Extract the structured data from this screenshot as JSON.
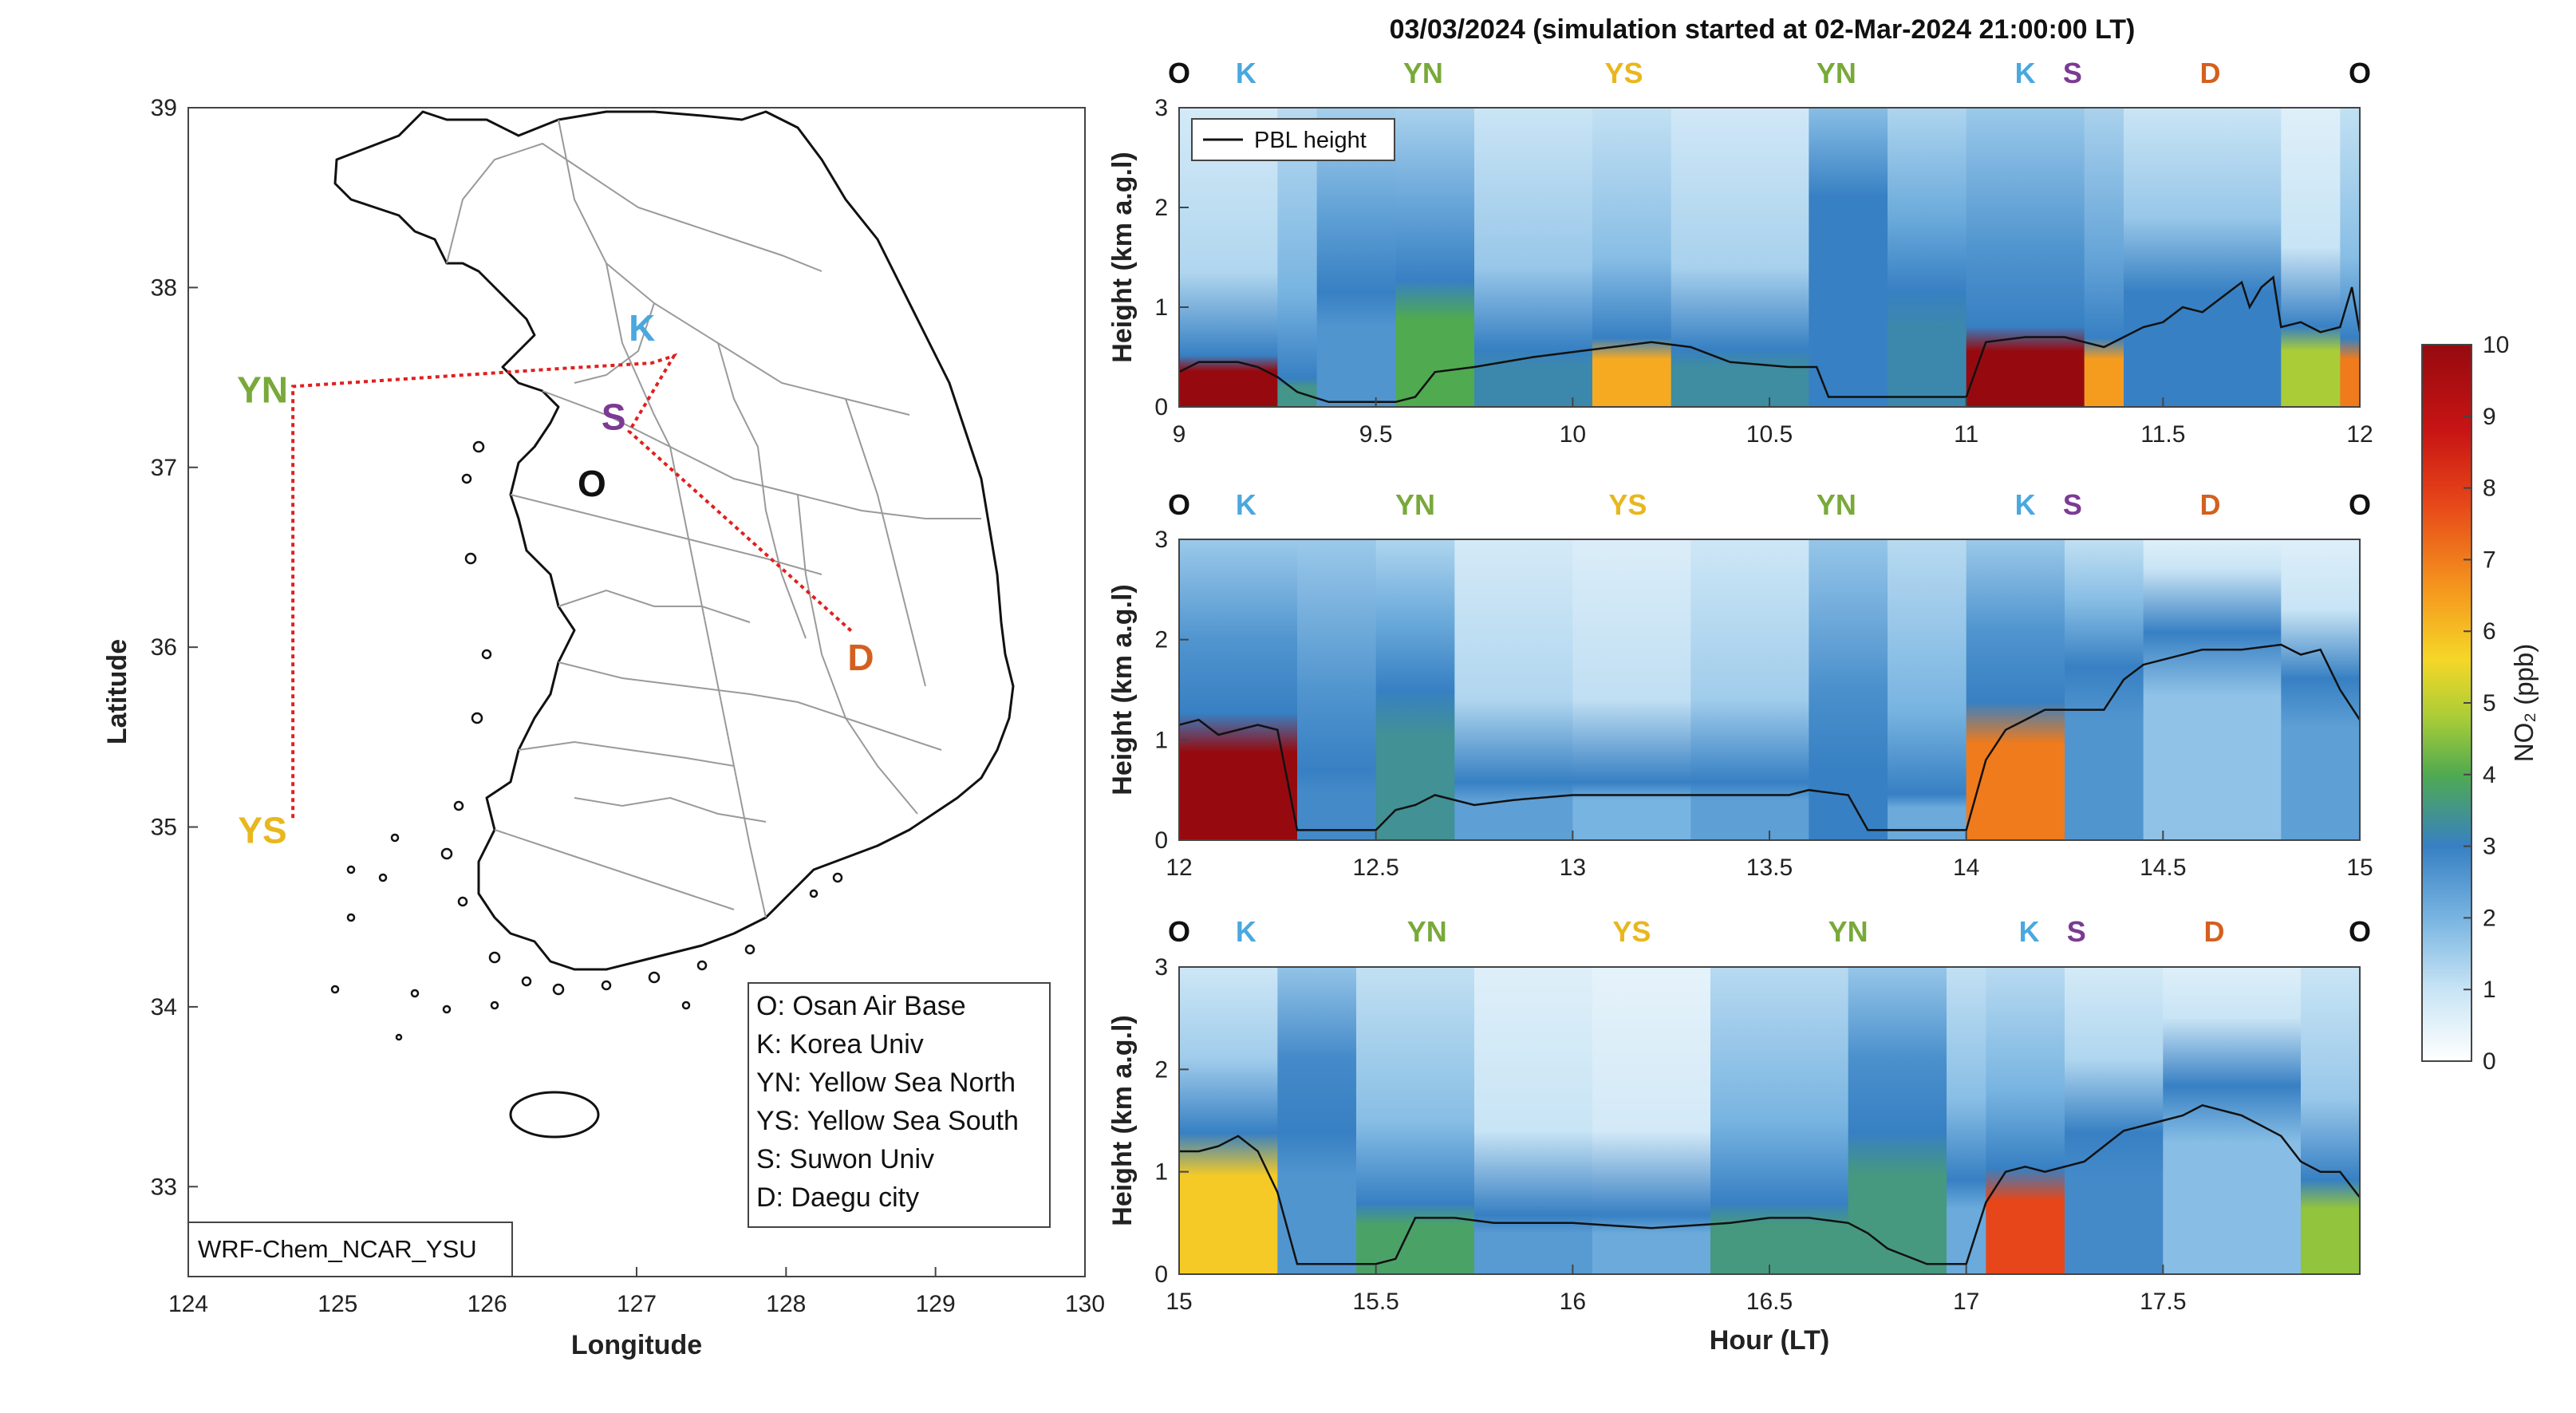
{
  "figure": {
    "title": "03/03/2024 (simulation started at 02-Mar-2024 21:00:00 LT)"
  },
  "colors": {
    "O": "#111111",
    "K": "#4aa8df",
    "YN": "#78a93a",
    "YS": "#e8b71e",
    "S": "#7b3a93",
    "D": "#d4601f",
    "flight_path": "#e0201e",
    "pbl_line": "#111111"
  },
  "map": {
    "xlabel": "Longitude",
    "ylabel": "Latitude",
    "xticks": [
      "124",
      "125",
      "126",
      "127",
      "128",
      "129",
      "130"
    ],
    "yticks": [
      "33",
      "34",
      "35",
      "36",
      "37",
      "38",
      "39"
    ],
    "model_label": "WRF-Chem_NCAR_YSU",
    "sites": [
      {
        "code": "YN",
        "lon": 124.55,
        "lat": 37.45
      },
      {
        "code": "YS",
        "lon": 124.55,
        "lat": 35.0
      },
      {
        "code": "K",
        "lon": 127.1,
        "lat": 37.66
      },
      {
        "code": "S",
        "lon": 126.9,
        "lat": 37.29
      },
      {
        "code": "O",
        "lon": 126.85,
        "lat": 37.07
      },
      {
        "code": "D",
        "lon": 128.5,
        "lat": 35.96
      }
    ],
    "legend": [
      "O: Osan Air Base",
      "K: Korea Univ",
      "YN: Yellow Sea North",
      "YS: Yellow Sea South",
      "S: Suwon Univ",
      "D: Daegu city"
    ]
  },
  "colorbar": {
    "label": "NO₂ (ppb)",
    "ticks": [
      "0",
      "1",
      "2",
      "3",
      "4",
      "5",
      "6",
      "7",
      "8",
      "9",
      "10"
    ],
    "range": [
      0,
      10
    ]
  },
  "chart_data": [
    {
      "type": "heatmap",
      "variable": "NO2 curtain",
      "xlabel": "",
      "ylabel": "Height (km a.g.l)",
      "xlim": [
        9,
        12
      ],
      "ylim": [
        0,
        3
      ],
      "xticks": [
        "9",
        "9.5",
        "10",
        "10.5",
        "11",
        "11.5",
        "12"
      ],
      "yticks": [
        "0",
        "1",
        "2",
        "3"
      ],
      "legend": {
        "entries": [
          "PBL height"
        ],
        "placement": "top-left"
      },
      "site_markers": [
        {
          "code": "O",
          "x": 9.0
        },
        {
          "code": "K",
          "x": 9.17
        },
        {
          "code": "YN",
          "x": 9.62
        },
        {
          "code": "YS",
          "x": 10.13
        },
        {
          "code": "YN",
          "x": 10.67
        },
        {
          "code": "K",
          "x": 11.15
        },
        {
          "code": "S",
          "x": 11.27
        },
        {
          "code": "D",
          "x": 11.62
        },
        {
          "code": "O",
          "x": 12.0
        }
      ],
      "pbl_height": {
        "x": [
          9.0,
          9.05,
          9.15,
          9.2,
          9.25,
          9.3,
          9.38,
          9.5,
          9.55,
          9.6,
          9.65,
          9.75,
          9.9,
          10.0,
          10.1,
          10.2,
          10.3,
          10.4,
          10.55,
          10.62,
          10.65,
          10.8,
          10.95,
          11.0,
          11.05,
          11.15,
          11.25,
          11.3,
          11.35,
          11.4,
          11.45,
          11.5,
          11.55,
          11.6,
          11.65,
          11.7,
          11.72,
          11.75,
          11.78,
          11.8,
          11.85,
          11.9,
          11.95,
          11.98,
          12.0
        ],
        "y": [
          0.35,
          0.45,
          0.45,
          0.4,
          0.3,
          0.15,
          0.05,
          0.05,
          0.05,
          0.1,
          0.35,
          0.4,
          0.5,
          0.55,
          0.6,
          0.65,
          0.6,
          0.45,
          0.4,
          0.4,
          0.1,
          0.1,
          0.1,
          0.1,
          0.65,
          0.7,
          0.7,
          0.65,
          0.6,
          0.7,
          0.8,
          0.85,
          1.0,
          0.95,
          1.1,
          1.25,
          1.0,
          1.2,
          1.3,
          0.8,
          0.85,
          0.75,
          0.8,
          1.2,
          0.75
        ]
      },
      "no2_columns": [
        {
          "x": [
            9.0,
            9.25
          ],
          "surface": 10.0,
          "depth": 0.45,
          "aloft": 1.3
        },
        {
          "x": [
            9.25,
            9.35
          ],
          "surface": 3.5,
          "depth": 0.25,
          "aloft": 2.0
        },
        {
          "x": [
            9.35,
            9.55
          ],
          "surface": 2.6,
          "depth": 1.0,
          "aloft": 2.4
        },
        {
          "x": [
            9.55,
            9.75
          ],
          "surface": 4.0,
          "depth": 1.1,
          "aloft": 2.3
        },
        {
          "x": [
            9.75,
            10.05
          ],
          "surface": 3.2,
          "depth": 0.5,
          "aloft": 1.6
        },
        {
          "x": [
            10.05,
            10.25
          ],
          "surface": 6.3,
          "depth": 0.6,
          "aloft": 1.8
        },
        {
          "x": [
            10.25,
            10.6
          ],
          "surface": 3.3,
          "depth": 0.5,
          "aloft": 1.4
        },
        {
          "x": [
            10.6,
            10.8
          ],
          "surface": 3.0,
          "depth": 1.2,
          "aloft": 3.0
        },
        {
          "x": [
            10.8,
            11.0
          ],
          "surface": 3.2,
          "depth": 1.0,
          "aloft": 2.2
        },
        {
          "x": [
            11.0,
            11.3
          ],
          "surface": 10.0,
          "depth": 0.7,
          "aloft": 2.6
        },
        {
          "x": [
            11.3,
            11.4
          ],
          "surface": 6.5,
          "depth": 0.6,
          "aloft": 2.3
        },
        {
          "x": [
            11.4,
            11.8
          ],
          "surface": 3.0,
          "depth": 1.0,
          "aloft": 1.6
        },
        {
          "x": [
            11.8,
            11.95
          ],
          "surface": 4.8,
          "depth": 0.7,
          "aloft": 1.0
        },
        {
          "x": [
            11.95,
            12.0
          ],
          "surface": 7.0,
          "depth": 0.6,
          "aloft": 1.8
        }
      ]
    },
    {
      "type": "heatmap",
      "variable": "NO2 curtain",
      "xlabel": "",
      "ylabel": "Height (km a.g.l)",
      "xlim": [
        12,
        15
      ],
      "ylim": [
        0,
        3
      ],
      "xticks": [
        "12",
        "12.5",
        "13",
        "13.5",
        "14",
        "14.5",
        "15"
      ],
      "yticks": [
        "0",
        "1",
        "2",
        "3"
      ],
      "site_markers": [
        {
          "code": "O",
          "x": 12.0
        },
        {
          "code": "K",
          "x": 12.17
        },
        {
          "code": "YN",
          "x": 12.6
        },
        {
          "code": "YS",
          "x": 13.14
        },
        {
          "code": "YN",
          "x": 13.67
        },
        {
          "code": "K",
          "x": 14.15
        },
        {
          "code": "S",
          "x": 14.27
        },
        {
          "code": "D",
          "x": 14.62
        },
        {
          "code": "O",
          "x": 15.0
        }
      ],
      "pbl_height": {
        "x": [
          12.0,
          12.05,
          12.1,
          12.2,
          12.25,
          12.3,
          12.4,
          12.5,
          12.55,
          12.6,
          12.65,
          12.75,
          12.85,
          13.0,
          13.2,
          13.4,
          13.55,
          13.6,
          13.7,
          13.75,
          13.8,
          13.9,
          14.0,
          14.05,
          14.1,
          14.15,
          14.2,
          14.35,
          14.4,
          14.45,
          14.5,
          14.6,
          14.7,
          14.8,
          14.85,
          14.9,
          14.95,
          15.0
        ],
        "y": [
          1.15,
          1.2,
          1.05,
          1.15,
          1.1,
          0.1,
          0.1,
          0.1,
          0.3,
          0.35,
          0.45,
          0.35,
          0.4,
          0.45,
          0.45,
          0.45,
          0.45,
          0.5,
          0.45,
          0.1,
          0.1,
          0.1,
          0.1,
          0.8,
          1.1,
          1.2,
          1.3,
          1.3,
          1.6,
          1.75,
          1.8,
          1.9,
          1.9,
          1.95,
          1.85,
          1.9,
          1.5,
          1.2
        ]
      },
      "no2_columns": [
        {
          "x": [
            12.0,
            12.3
          ],
          "surface": 10.0,
          "depth": 1.1,
          "aloft": 2.6
        },
        {
          "x": [
            12.3,
            12.5
          ],
          "surface": 2.8,
          "depth": 0.6,
          "aloft": 2.6
        },
        {
          "x": [
            12.5,
            12.7
          ],
          "surface": 3.4,
          "depth": 1.3,
          "aloft": 2.2
        },
        {
          "x": [
            12.7,
            13.0
          ],
          "surface": 2.4,
          "depth": 0.5,
          "aloft": 1.3
        },
        {
          "x": [
            13.0,
            13.3
          ],
          "surface": 2.0,
          "depth": 0.5,
          "aloft": 1.1
        },
        {
          "x": [
            13.3,
            13.6
          ],
          "surface": 2.4,
          "depth": 0.5,
          "aloft": 1.5
        },
        {
          "x": [
            13.6,
            13.8
          ],
          "surface": 3.0,
          "depth": 0.6,
          "aloft": 2.7
        },
        {
          "x": [
            13.8,
            14.0
          ],
          "surface": 2.2,
          "depth": 0.4,
          "aloft": 2.0
        },
        {
          "x": [
            14.0,
            14.25
          ],
          "surface": 7.0,
          "depth": 1.2,
          "aloft": 2.6
        },
        {
          "x": [
            14.25,
            14.45
          ],
          "surface": 2.6,
          "depth": 1.5,
          "aloft": 1.8
        },
        {
          "x": [
            14.45,
            14.8
          ],
          "surface": 1.7,
          "depth": 1.8,
          "aloft": 1.0
        },
        {
          "x": [
            14.8,
            15.0
          ],
          "surface": 2.4,
          "depth": 1.4,
          "aloft": 1.0
        }
      ]
    },
    {
      "type": "heatmap",
      "variable": "NO2 curtain",
      "xlabel": "Hour (LT)",
      "ylabel": "Height (km a.g.l)",
      "xlim": [
        15,
        18
      ],
      "ylim": [
        0,
        3
      ],
      "xticks": [
        "15",
        "15.5",
        "16",
        "16.5",
        "17",
        "17.5"
      ],
      "yticks": [
        "0",
        "1",
        "2",
        "3"
      ],
      "site_markers": [
        {
          "code": "O",
          "x": 15.0
        },
        {
          "code": "K",
          "x": 15.17
        },
        {
          "code": "YN",
          "x": 15.63
        },
        {
          "code": "YS",
          "x": 16.15
        },
        {
          "code": "YN",
          "x": 16.7
        },
        {
          "code": "K",
          "x": 17.16
        },
        {
          "code": "S",
          "x": 17.28
        },
        {
          "code": "D",
          "x": 17.63
        },
        {
          "code": "O",
          "x": 18.0
        }
      ],
      "pbl_height": {
        "x": [
          15.0,
          15.05,
          15.1,
          15.15,
          15.2,
          15.25,
          15.3,
          15.4,
          15.5,
          15.55,
          15.6,
          15.7,
          15.8,
          15.9,
          16.0,
          16.2,
          16.4,
          16.5,
          16.6,
          16.7,
          16.75,
          16.8,
          16.9,
          17.0,
          17.05,
          17.1,
          17.15,
          17.2,
          17.3,
          17.4,
          17.5,
          17.55,
          17.6,
          17.65,
          17.7,
          17.75,
          17.8,
          17.85,
          17.9,
          17.95,
          18.0
        ],
        "y": [
          1.2,
          1.2,
          1.25,
          1.35,
          1.2,
          0.8,
          0.1,
          0.1,
          0.1,
          0.15,
          0.55,
          0.55,
          0.5,
          0.5,
          0.5,
          0.45,
          0.5,
          0.55,
          0.55,
          0.5,
          0.4,
          0.25,
          0.1,
          0.1,
          0.7,
          1.0,
          1.05,
          1.0,
          1.1,
          1.4,
          1.5,
          1.55,
          1.65,
          1.6,
          1.55,
          1.45,
          1.35,
          1.1,
          1.0,
          1.0,
          0.75
        ]
      },
      "no2_columns": [
        {
          "x": [
            15.0,
            15.25
          ],
          "surface": 5.8,
          "depth": 1.2,
          "aloft": 1.5
        },
        {
          "x": [
            15.25,
            15.45
          ],
          "surface": 2.6,
          "depth": 1.2,
          "aloft": 2.8
        },
        {
          "x": [
            15.45,
            15.75
          ],
          "surface": 3.8,
          "depth": 0.6,
          "aloft": 1.8
        },
        {
          "x": [
            15.75,
            16.05
          ],
          "surface": 2.5,
          "depth": 0.5,
          "aloft": 1.0
        },
        {
          "x": [
            16.05,
            16.35
          ],
          "surface": 2.2,
          "depth": 0.5,
          "aloft": 0.8
        },
        {
          "x": [
            16.35,
            16.7
          ],
          "surface": 3.6,
          "depth": 0.6,
          "aloft": 2.0
        },
        {
          "x": [
            16.7,
            16.95
          ],
          "surface": 3.6,
          "depth": 1.2,
          "aloft": 2.7
        },
        {
          "x": [
            16.95,
            17.05
          ],
          "surface": 2.2,
          "depth": 0.8,
          "aloft": 1.8
        },
        {
          "x": [
            17.05,
            17.25
          ],
          "surface": 7.8,
          "depth": 0.9,
          "aloft": 2.0
        },
        {
          "x": [
            17.25,
            17.5
          ],
          "surface": 2.8,
          "depth": 1.2,
          "aloft": 1.3
        },
        {
          "x": [
            17.5,
            17.85
          ],
          "surface": 1.8,
          "depth": 1.6,
          "aloft": 1.0
        },
        {
          "x": [
            17.85,
            18.0
          ],
          "surface": 4.6,
          "depth": 0.8,
          "aloft": 1.6
        }
      ]
    }
  ]
}
